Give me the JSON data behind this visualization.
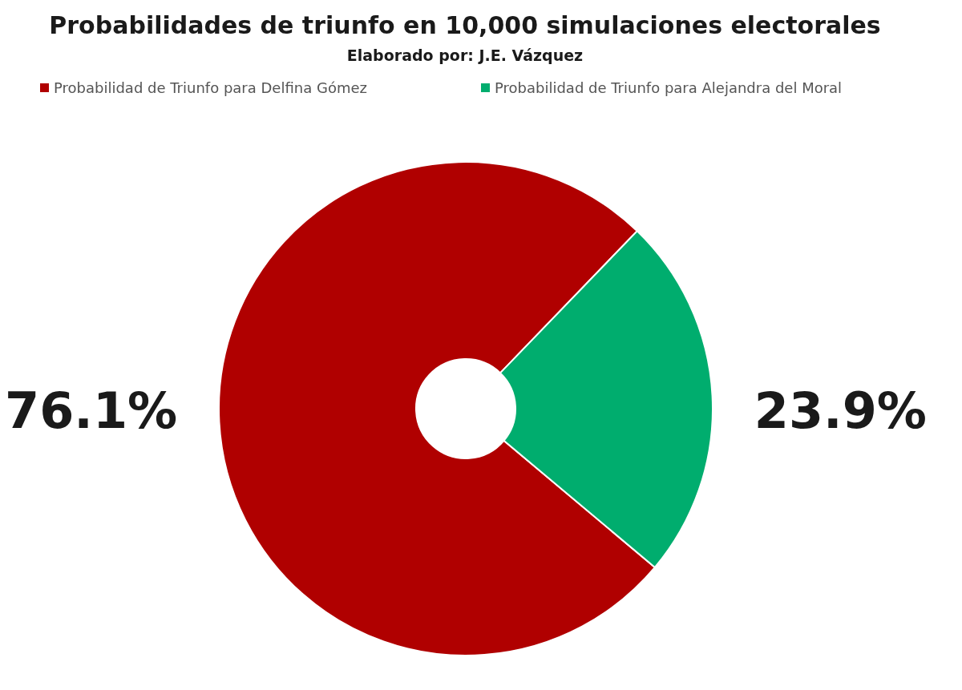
{
  "chart_data": {
    "type": "donut",
    "title": "Probabilidades de triunfo en 10,000 simulaciones electorales",
    "subtitle": "Elaborado por: J.E. Vázquez",
    "categories": [
      "Probabilidad de Triunfo para Delfina Gómez",
      "Probabilidad de Triunfo para Alejandra del Moral"
    ],
    "values": [
      76.1,
      23.9
    ],
    "colors": [
      "#b00000",
      "#00ad6e"
    ],
    "value_labels": [
      "76.1%",
      "23.9%"
    ],
    "legend": "top"
  }
}
